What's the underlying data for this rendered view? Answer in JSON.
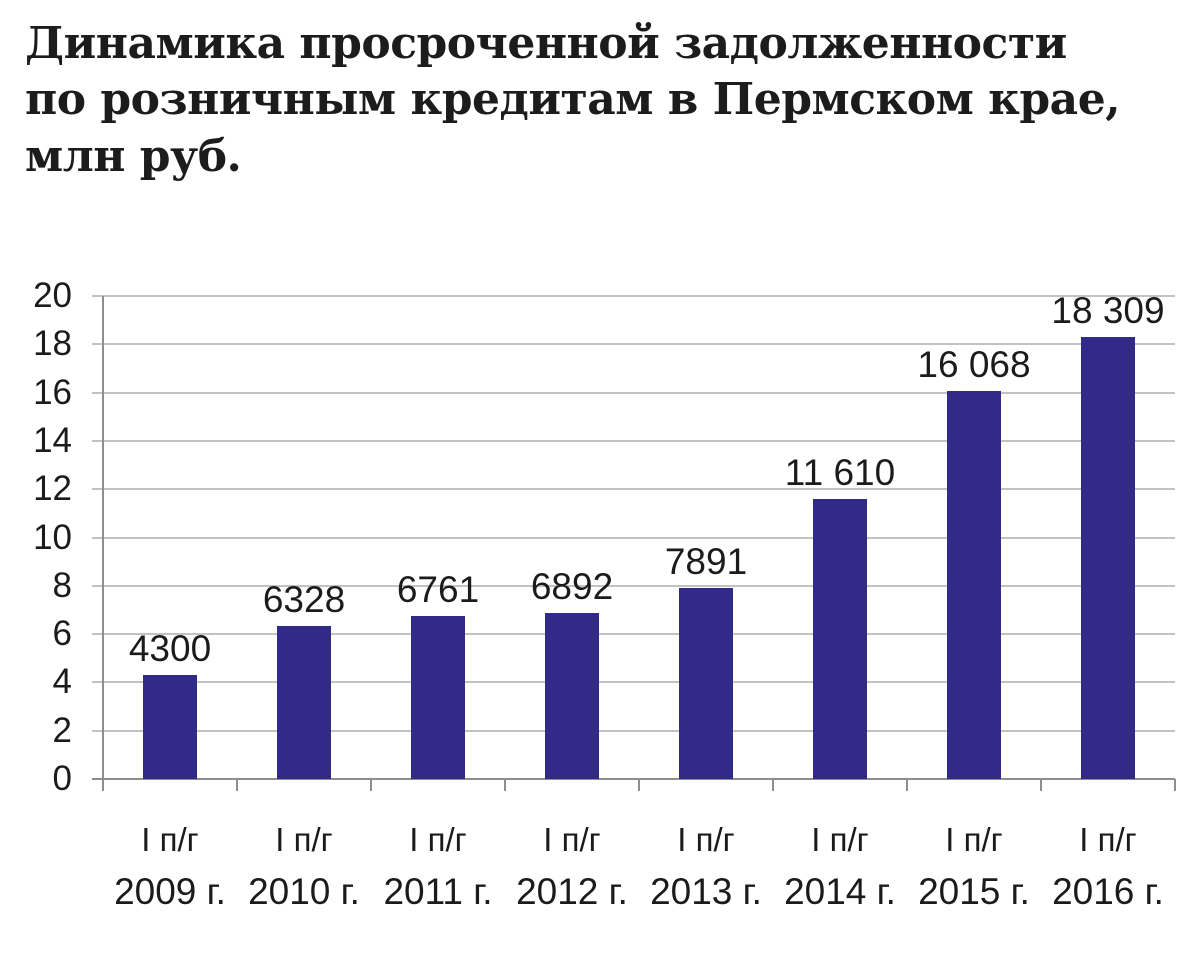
{
  "title": {
    "lines": [
      "Динамика просроченной задолженности",
      "по розничным кредитам в Пермском крае,",
      "млн руб."
    ],
    "full": "Динамика просроченной задолженности по розничным кредитам в Пермском крае, млн руб."
  },
  "chart_data": {
    "type": "bar",
    "title": "Динамика просроченной задолженности по розничным кредитам в Пермском крае, млн руб.",
    "unit": "млн руб.",
    "categories": [
      {
        "period": "I п/г",
        "year": "2009 г."
      },
      {
        "period": "I п/г",
        "year": "2010 г."
      },
      {
        "period": "I п/г",
        "year": "2011 г."
      },
      {
        "period": "I п/г",
        "year": "2012 г."
      },
      {
        "period": "I п/г",
        "year": "2013 г."
      },
      {
        "period": "I п/г",
        "year": "2014 г."
      },
      {
        "period": "I п/г",
        "year": "2015 г."
      },
      {
        "period": "I п/г",
        "year": "2016 г."
      }
    ],
    "values": [
      4300,
      6328,
      6761,
      6892,
      7891,
      11610,
      16068,
      18309
    ],
    "value_labels": [
      "4300",
      "6328",
      "6761",
      "6892",
      "7891",
      "11 610",
      "16 068",
      "18 309"
    ],
    "ylim": [
      0,
      20
    ],
    "y_ticks": [
      0,
      2,
      4,
      6,
      8,
      10,
      12,
      14,
      16,
      18,
      20
    ],
    "y_axis_unit_divisor": 1000,
    "grid": true,
    "legend": "none",
    "bar_color": "#312b87",
    "gridline_color": "#c2c2c2",
    "axis_color": "#8d8d8d",
    "text_color": "#1b1b1b"
  }
}
